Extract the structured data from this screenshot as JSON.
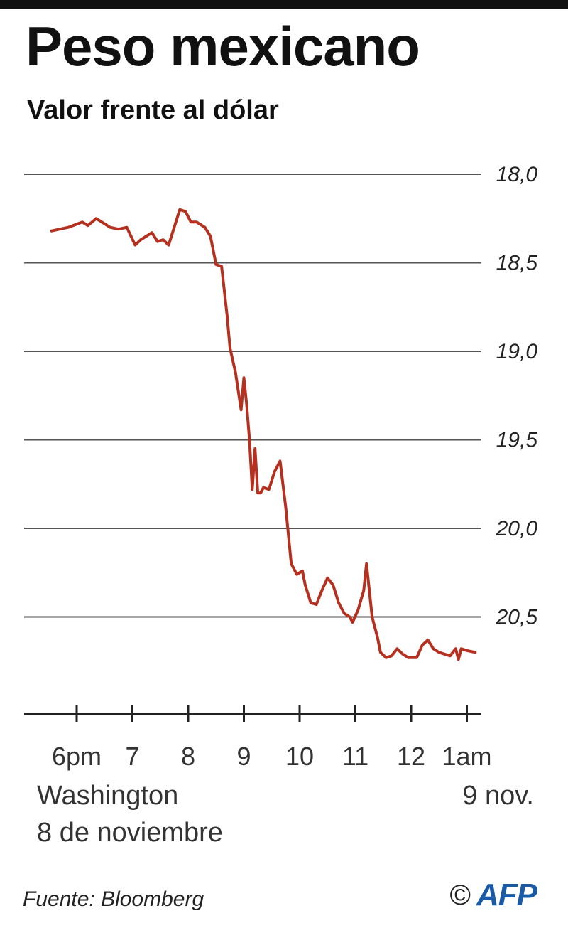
{
  "header": {
    "title": "Peso mexicano",
    "subtitle": "Valor frente al dólar"
  },
  "footer": {
    "location": "Washington",
    "date_start": "8 de noviembre",
    "date_end": "9 nov.",
    "source": "Fuente: Bloomberg",
    "copyright_symbol": "©",
    "agency": "AFP"
  },
  "colors": {
    "line": "#b5301f",
    "grid": "#555555",
    "axis": "#222222",
    "agency": "#1b5aa6"
  },
  "chart_data": {
    "type": "line",
    "title": "Peso mexicano",
    "subtitle": "Valor frente al dólar",
    "xlabel": "",
    "ylabel": "",
    "y_inverted": true,
    "ylim": [
      18.0,
      21.0
    ],
    "yticks": [
      18.0,
      18.5,
      19.0,
      19.5,
      20.0,
      20.5
    ],
    "ytick_labels": [
      "18,0",
      "18,5",
      "19,0",
      "19,5",
      "20,0",
      "20,5"
    ],
    "xlim": [
      17.5,
      25.1
    ],
    "xticks": [
      18,
      19,
      20,
      21,
      22,
      23,
      24,
      25
    ],
    "xtick_labels": [
      "6pm",
      "7",
      "8",
      "9",
      "10",
      "11",
      "12",
      "1am"
    ],
    "grid": true,
    "legend": "none",
    "series": [
      {
        "x": [
          17.55,
          17.85,
          18.1,
          18.2,
          18.35,
          18.45,
          18.6,
          18.75,
          18.9,
          19.05,
          19.15,
          19.35,
          19.45,
          19.55,
          19.65,
          19.85,
          19.95,
          20.05,
          20.15,
          20.3,
          20.4,
          20.5,
          20.6,
          20.7,
          20.75,
          20.85,
          20.95,
          21.0,
          21.05,
          21.1,
          21.15,
          21.2,
          21.25,
          21.3,
          21.35,
          21.45,
          21.55,
          21.65,
          21.75,
          21.85,
          21.95,
          22.05,
          22.1,
          22.2,
          22.3,
          22.4,
          22.5,
          22.6,
          22.7,
          22.8,
          22.9,
          22.95,
          23.05,
          23.15,
          23.2,
          23.3,
          23.4,
          23.45,
          23.55,
          23.65,
          23.75,
          23.85,
          23.95,
          24.1,
          24.2,
          24.3,
          24.4,
          24.5,
          24.6,
          24.7,
          24.8,
          24.85,
          24.9,
          25.0,
          25.15
        ],
        "values": [
          18.32,
          18.3,
          18.27,
          18.29,
          18.25,
          18.27,
          18.3,
          18.31,
          18.3,
          18.4,
          18.37,
          18.33,
          18.38,
          18.37,
          18.4,
          18.2,
          18.21,
          18.27,
          18.27,
          18.3,
          18.35,
          18.51,
          18.52,
          18.8,
          18.98,
          19.12,
          19.33,
          19.15,
          19.3,
          19.5,
          19.78,
          19.55,
          19.8,
          19.8,
          19.77,
          19.78,
          19.68,
          19.62,
          19.88,
          20.2,
          20.26,
          20.24,
          20.32,
          20.42,
          20.43,
          20.35,
          20.28,
          20.32,
          20.42,
          20.48,
          20.5,
          20.53,
          20.46,
          20.35,
          20.2,
          20.5,
          20.62,
          20.7,
          20.73,
          20.72,
          20.68,
          20.71,
          20.73,
          20.73,
          20.66,
          20.63,
          20.68,
          20.7,
          20.71,
          20.72,
          20.68,
          20.74,
          20.68,
          20.69,
          20.7
        ]
      }
    ]
  }
}
